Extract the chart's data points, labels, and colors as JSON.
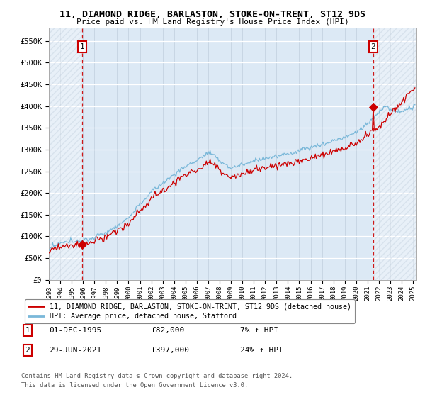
{
  "title_line1": "11, DIAMOND RIDGE, BARLASTON, STOKE-ON-TRENT, ST12 9DS",
  "title_line2": "Price paid vs. HM Land Registry's House Price Index (HPI)",
  "ylim": [
    0,
    580000
  ],
  "yticks": [
    0,
    50000,
    100000,
    150000,
    200000,
    250000,
    300000,
    350000,
    400000,
    450000,
    500000,
    550000
  ],
  "ytick_labels": [
    "£0",
    "£50K",
    "£100K",
    "£150K",
    "£200K",
    "£250K",
    "£300K",
    "£350K",
    "£400K",
    "£450K",
    "£500K",
    "£550K"
  ],
  "hpi_color": "#7ab8d9",
  "price_color": "#cc0000",
  "dot_color": "#cc0000",
  "annotation_box_color": "#cc0000",
  "vline_color": "#cc0000",
  "plot_bg_color": "#dce9f5",
  "hatch_color": "#b8c8d8",
  "legend_label1": "11, DIAMOND RIDGE, BARLASTON, STOKE-ON-TRENT, ST12 9DS (detached house)",
  "legend_label2": "HPI: Average price, detached house, Stafford",
  "annotation1_label": "1",
  "annotation1_date": "01-DEC-1995",
  "annotation1_price": "£82,000",
  "annotation1_hpi": "7% ↑ HPI",
  "annotation1_value": 82000,
  "annotation1_year": 1995.92,
  "annotation2_label": "2",
  "annotation2_date": "29-JUN-2021",
  "annotation2_price": "£397,000",
  "annotation2_hpi": "24% ↑ HPI",
  "annotation2_value": 397000,
  "annotation2_year": 2021.5,
  "xmin": 1993,
  "xmax": 2025.3,
  "footer_line1": "Contains HM Land Registry data © Crown copyright and database right 2024.",
  "footer_line2": "This data is licensed under the Open Government Licence v3.0."
}
